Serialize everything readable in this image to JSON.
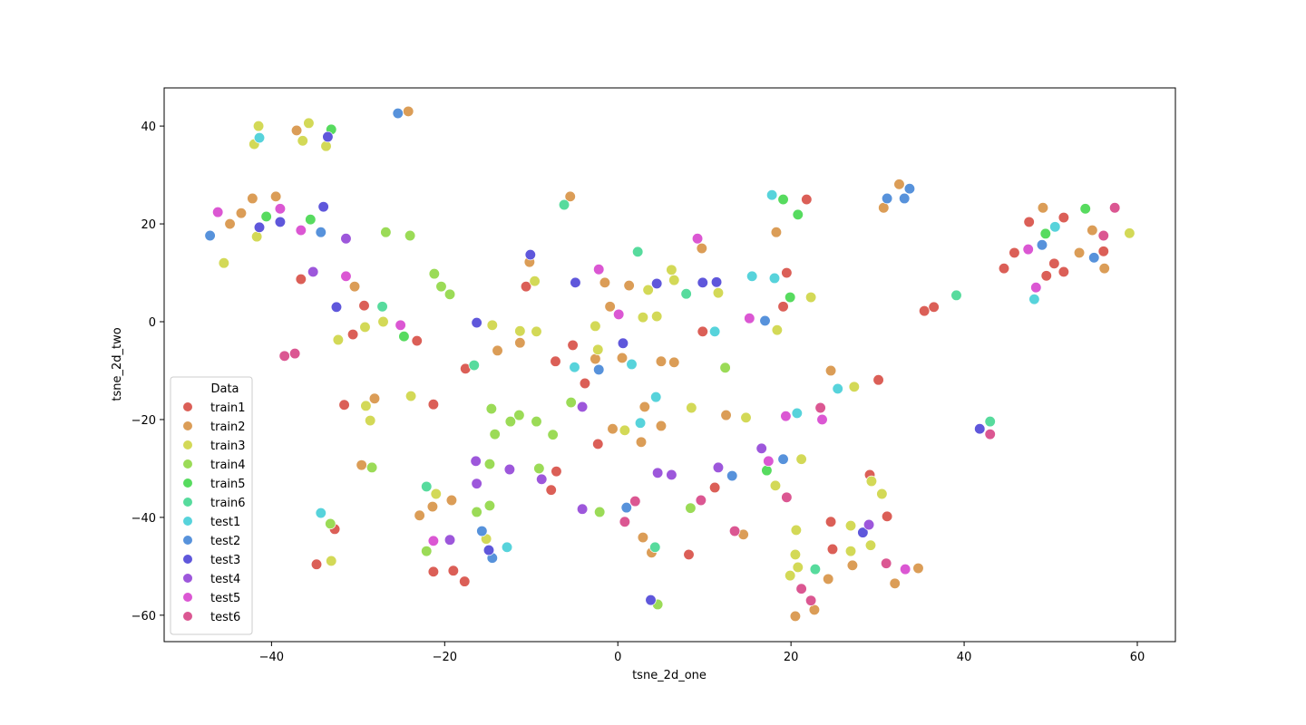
{
  "chart_data": {
    "type": "scatter",
    "x_label": "tsne_2d_one",
    "y_label": "tsne_2d_two",
    "xlim": [
      -52.4,
      64.4
    ],
    "ylim": [
      -65.4,
      47.8
    ],
    "xticks": [
      {
        "value": -40,
        "label": "−40"
      },
      {
        "value": -20,
        "label": "−20"
      },
      0,
      20,
      40,
      60
    ],
    "yticks": [
      {
        "value": -60,
        "label": "−60"
      },
      {
        "value": -40,
        "label": "−40"
      },
      {
        "value": -20,
        "label": "−20"
      },
      0,
      20,
      40
    ],
    "grid": false,
    "legend_title": "Data",
    "legend_position": "lower left",
    "series": [
      {
        "name": "train1",
        "color": "#db5f57",
        "x": [
          -36.6,
          -29.3,
          -30.6,
          -23.2,
          -31.6,
          -21.3,
          -17.6,
          -10.6,
          -5.2,
          -7.2,
          -3.8,
          -2.3,
          -7.1,
          -7.7,
          -21.3,
          -19.0,
          -17.7,
          -34.8,
          -32.7,
          9.8,
          19.1,
          19.5,
          21.8,
          35.4,
          36.5,
          30.1,
          24.6,
          24.8,
          29.1,
          31.1,
          11.2,
          8.2,
          44.6,
          45.8,
          47.5,
          49.5,
          50.4,
          51.5,
          51.5,
          56.1
        ],
        "values": [
          8.7,
          3.3,
          -2.6,
          -3.9,
          -17.0,
          -16.9,
          -9.6,
          7.2,
          -4.8,
          -8.1,
          -12.6,
          -25.0,
          -30.6,
          -34.4,
          -51.1,
          -50.9,
          -53.1,
          -49.6,
          -42.4,
          -2.0,
          3.1,
          10.0,
          25.0,
          2.2,
          3.0,
          -11.9,
          -40.9,
          -46.5,
          -31.3,
          -39.8,
          -33.9,
          -47.6,
          10.9,
          14.1,
          20.4,
          9.4,
          11.9,
          21.3,
          10.2,
          14.4
        ]
      },
      {
        "name": "train2",
        "color": "#db9d57",
        "x": [
          -24.2,
          -37.1,
          -42.2,
          -39.5,
          -43.5,
          -44.8,
          -30.4,
          -28.1,
          -29.6,
          -22.9,
          -21.4,
          -19.2,
          -13.9,
          -11.3,
          -10.2,
          -5.5,
          -1.5,
          1.3,
          -0.9,
          -2.6,
          0.5,
          -0.6,
          3.1,
          2.7,
          5.0,
          5.0,
          6.5,
          9.7,
          12.5,
          2.9,
          3.9,
          14.5,
          18.3,
          24.6,
          24.3,
          27.1,
          22.7,
          20.5,
          32.0,
          34.7,
          30.7,
          32.5,
          49.1,
          54.8,
          53.3,
          56.2
        ],
        "values": [
          43.0,
          39.1,
          25.2,
          25.6,
          22.2,
          20.0,
          7.2,
          -15.7,
          -29.3,
          -39.6,
          -37.8,
          -36.5,
          -5.9,
          -4.3,
          12.2,
          25.6,
          8.0,
          7.4,
          3.1,
          -7.6,
          -7.4,
          -21.9,
          -17.4,
          -24.6,
          -21.3,
          -8.1,
          -8.3,
          15.0,
          -19.1,
          -44.1,
          -47.2,
          -43.5,
          18.3,
          -10.0,
          -52.6,
          -49.8,
          -58.9,
          -60.2,
          -53.5,
          -50.4,
          23.3,
          28.1,
          23.3,
          18.7,
          14.1,
          10.9
        ]
      },
      {
        "name": "train3",
        "color": "#d3d957",
        "x": [
          -41.5,
          -42.0,
          -35.7,
          -36.4,
          -33.7,
          -41.7,
          -45.5,
          -32.3,
          -29.2,
          -27.1,
          -29.1,
          -28.6,
          -23.9,
          -21.0,
          -33.1,
          -15.2,
          -14.5,
          -11.3,
          -9.4,
          -9.6,
          -2.6,
          -2.3,
          0.8,
          3.5,
          2.9,
          4.5,
          6.2,
          6.5,
          11.6,
          8.5,
          14.8,
          18.4,
          18.2,
          21.2,
          22.3,
          20.6,
          20.5,
          20.8,
          19.9,
          27.3,
          26.9,
          26.9,
          29.3,
          30.5,
          29.2,
          59.1
        ],
        "values": [
          40.0,
          36.3,
          40.6,
          37.0,
          35.9,
          17.4,
          12.0,
          -3.7,
          -1.1,
          0.0,
          -17.2,
          -20.2,
          -15.2,
          -35.2,
          -48.9,
          -44.4,
          -0.7,
          -1.9,
          -2.0,
          8.3,
          -0.9,
          -5.7,
          -22.2,
          6.5,
          0.9,
          1.1,
          10.6,
          8.5,
          5.9,
          -17.6,
          -19.6,
          -1.7,
          -33.5,
          -28.1,
          5.0,
          -42.6,
          -47.6,
          -50.2,
          -51.9,
          -13.3,
          -41.7,
          -46.9,
          -32.6,
          -35.2,
          -45.7,
          18.1
        ]
      },
      {
        "name": "train4",
        "color": "#9bdb57",
        "x": [
          -26.8,
          -24.0,
          -21.2,
          -20.4,
          -19.4,
          -33.2,
          -28.4,
          -22.1,
          -14.8,
          -16.3,
          -14.8,
          -14.6,
          -14.2,
          -12.4,
          -11.4,
          -9.4,
          -9.1,
          -7.5,
          -5.4,
          -2.1,
          4.6,
          8.4,
          12.4
        ],
        "values": [
          18.3,
          17.6,
          9.8,
          7.2,
          5.6,
          -41.3,
          -29.8,
          -46.9,
          -29.1,
          -38.9,
          -37.6,
          -17.8,
          -23.0,
          -20.4,
          -19.1,
          -20.4,
          -30.0,
          -23.1,
          -16.5,
          -38.9,
          -57.8,
          -38.1,
          -9.4
        ]
      },
      {
        "name": "train5",
        "color": "#57db5f",
        "x": [
          -40.6,
          -35.5,
          -33.1,
          -24.7,
          20.8,
          19.1,
          19.9,
          17.2,
          54.0,
          49.4
        ],
        "values": [
          21.5,
          20.9,
          39.3,
          -3.0,
          21.9,
          25.0,
          5.0,
          -30.4,
          23.1,
          18.0
        ]
      },
      {
        "name": "train6",
        "color": "#57db9d",
        "x": [
          -27.2,
          -16.6,
          -22.1,
          -6.2,
          2.3,
          7.9,
          4.3,
          22.8,
          39.1,
          43.0
        ],
        "values": [
          3.1,
          -8.9,
          -33.7,
          23.9,
          14.3,
          5.7,
          -46.1,
          -50.6,
          5.4,
          -20.4
        ]
      },
      {
        "name": "test1",
        "color": "#57d3db",
        "x": [
          -41.4,
          -34.3,
          -12.8,
          -5.0,
          1.6,
          4.4,
          2.6,
          11.2,
          15.5,
          18.1,
          17.8,
          20.7,
          25.4,
          50.5,
          48.1
        ],
        "values": [
          37.6,
          -39.1,
          -46.1,
          -9.3,
          -8.7,
          -15.4,
          -20.7,
          -2.0,
          9.3,
          8.9,
          25.9,
          -18.7,
          -13.7,
          19.4,
          4.6
        ]
      },
      {
        "name": "test2",
        "color": "#5792db",
        "x": [
          -47.1,
          -25.4,
          -34.3,
          -15.7,
          -14.5,
          -2.2,
          1.0,
          13.2,
          17.0,
          19.1,
          31.1,
          33.1,
          33.7,
          49.0,
          55.0
        ],
        "values": [
          17.6,
          42.6,
          18.3,
          -42.8,
          -48.3,
          -9.8,
          -38.0,
          -31.5,
          0.2,
          -28.1,
          25.2,
          25.2,
          27.2,
          15.7,
          13.1
        ]
      },
      {
        "name": "test3",
        "color": "#5f57db",
        "x": [
          -33.5,
          -34.0,
          -41.4,
          -39.0,
          -32.5,
          -16.3,
          -10.1,
          -4.9,
          4.5,
          9.8,
          11.4,
          0.6,
          -14.9,
          3.8,
          28.3,
          41.8
        ],
        "values": [
          37.8,
          23.5,
          19.3,
          20.4,
          3.0,
          -0.2,
          13.7,
          8.0,
          7.8,
          8.0,
          8.1,
          -4.4,
          -46.7,
          -56.9,
          -43.1,
          -21.9
        ]
      },
      {
        "name": "test4",
        "color": "#9d57db",
        "x": [
          -35.2,
          -31.4,
          -16.4,
          -16.3,
          -12.5,
          -8.8,
          -4.1,
          -4.1,
          4.6,
          6.2,
          11.6,
          16.6,
          29.0,
          -19.4
        ],
        "values": [
          10.2,
          17.0,
          -28.5,
          -33.1,
          -30.2,
          -32.2,
          -17.4,
          -38.3,
          -30.9,
          -31.3,
          -29.8,
          -25.9,
          -41.5,
          -44.6
        ]
      },
      {
        "name": "test5",
        "color": "#db57d3",
        "x": [
          -46.2,
          -39.0,
          -36.6,
          -31.4,
          -25.1,
          -2.2,
          0.1,
          9.2,
          15.2,
          17.4,
          19.4,
          23.6,
          47.4,
          48.3,
          33.2,
          -21.3
        ],
        "values": [
          22.4,
          23.1,
          18.7,
          9.3,
          -0.7,
          10.7,
          1.5,
          17.0,
          0.7,
          -28.5,
          -19.3,
          -20.0,
          14.8,
          7.0,
          -50.6,
          -44.8
        ]
      },
      {
        "name": "test6",
        "color": "#db5792",
        "x": [
          -38.5,
          -37.3,
          0.8,
          2.0,
          9.6,
          13.5,
          19.5,
          21.2,
          22.3,
          23.4,
          31.0,
          43.0,
          56.1,
          57.4
        ],
        "values": [
          -7.0,
          -6.5,
          -40.9,
          -36.7,
          -36.5,
          -42.8,
          -35.9,
          -54.6,
          -57.0,
          -17.6,
          -49.4,
          -23.0,
          17.6,
          23.3
        ]
      }
    ]
  }
}
